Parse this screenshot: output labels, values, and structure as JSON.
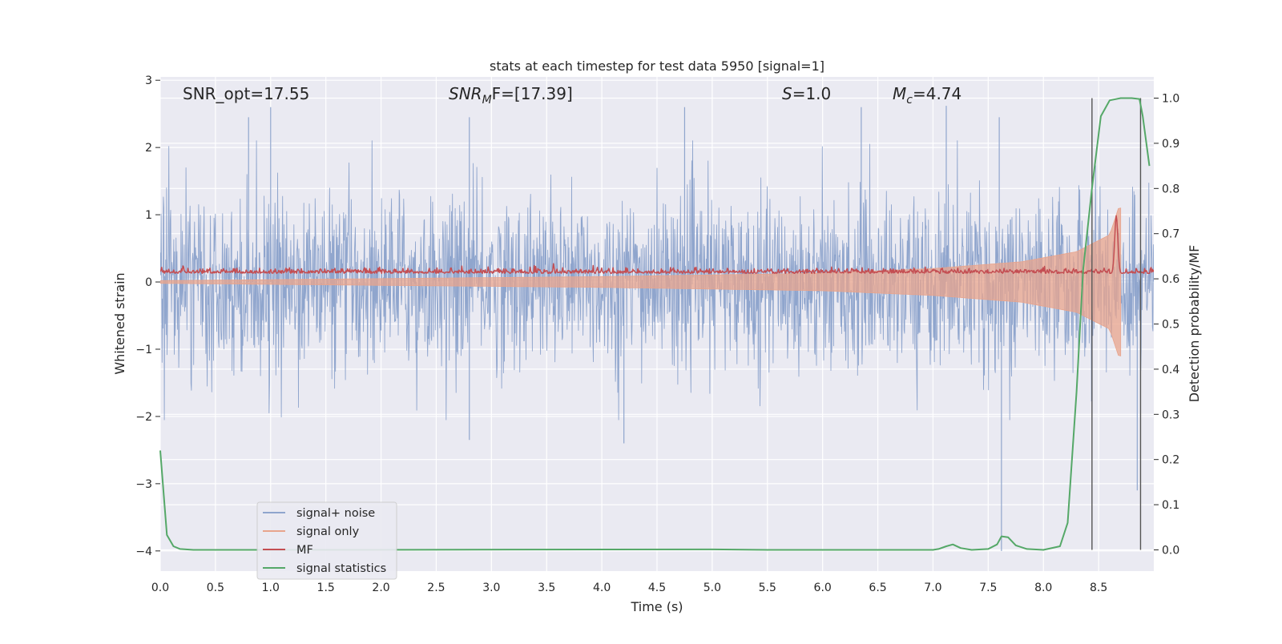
{
  "chart_data": {
    "type": "line",
    "title": "stats at each timestep for test data 5950 [signal=1]",
    "xlabel": "Time (s)",
    "ylabel": "Whitened strain",
    "y2label": "Detection probability/MF",
    "xlim": [
      0.0,
      9.0
    ],
    "ylim": [
      -4.3,
      3.05
    ],
    "y2lim": [
      -0.047,
      1.047
    ],
    "xticks": [
      "0.0",
      "0.5",
      "1.0",
      "1.5",
      "2.0",
      "2.5",
      "3.0",
      "3.5",
      "4.0",
      "4.5",
      "5.0",
      "5.5",
      "6.0",
      "6.5",
      "7.0",
      "7.5",
      "8.0",
      "8.5"
    ],
    "yticks": [
      "3",
      "2",
      "1",
      "0",
      "−1",
      "−2",
      "−3",
      "−4"
    ],
    "y2ticks": [
      "1.0",
      "0.9",
      "0.8",
      "0.7",
      "0.6",
      "0.5",
      "0.4",
      "0.3",
      "0.2",
      "0.1",
      "0.0"
    ],
    "grid": true,
    "legend_position": "lower-left",
    "annotations": {
      "snr_opt": "SNR_opt=17.55",
      "snr_mf_symbol": "SNR",
      "snr_mf_sub": "M",
      "snr_mf_rest": "F=[17.39]",
      "s_symbol": "S",
      "s_value": "=1.0",
      "mc_symbol": "M",
      "mc_sub": "c",
      "mc_value": "=4.74"
    },
    "vlines": [
      8.44,
      8.88
    ],
    "series": [
      {
        "name": "signal+ noise",
        "color": "#8fa5cd",
        "axis": "left",
        "description": "whitened strain of signal plus Gaussian noise, envelope roughly -1.5 to 1.8 with spikes to about 2.5 and -2.4; deep spikes near 7.62 s (-4.0) and 8.85 s (-3.1)",
        "envelope_low": -1.55,
        "envelope_high": 1.75,
        "spikes": [
          [
            0.8,
            2.45
          ],
          [
            1.0,
            2.6
          ],
          [
            2.8,
            2.45
          ],
          [
            4.75,
            2.6
          ],
          [
            6.35,
            2.6
          ],
          [
            7.12,
            2.62
          ],
          [
            7.6,
            2.45
          ],
          [
            2.8,
            -2.35
          ],
          [
            4.2,
            -2.4
          ],
          [
            7.62,
            -4.0
          ],
          [
            8.85,
            -3.1
          ]
        ]
      },
      {
        "name": "signal only",
        "color": "#e8a48c",
        "axis": "left",
        "description": "chirp signal whose amplitude grows toward merger",
        "amplitude_points": [
          [
            0.0,
            0.02
          ],
          [
            2.0,
            0.05
          ],
          [
            4.0,
            0.08
          ],
          [
            6.0,
            0.13
          ],
          [
            7.0,
            0.2
          ],
          [
            7.8,
            0.3
          ],
          [
            8.3,
            0.45
          ],
          [
            8.6,
            0.7
          ],
          [
            8.68,
            1.1
          ]
        ],
        "end_time": 8.7
      },
      {
        "name": "MF",
        "color": "#c44e52",
        "axis": "right",
        "description": "matched filter output, hovering near 0.61-0.62 with a sharp peak to 0.74 around 8.66 s",
        "baseline": 0.612,
        "peak": [
          8.66,
          0.74
        ]
      },
      {
        "name": "signal statistics",
        "color": "#55a868",
        "axis": "right",
        "x": [
          0.0,
          0.06,
          0.12,
          0.18,
          0.3,
          1.0,
          5.0,
          5.5,
          7.0,
          7.05,
          7.12,
          7.18,
          7.25,
          7.35,
          7.5,
          7.58,
          7.62,
          7.68,
          7.75,
          7.85,
          8.0,
          8.15,
          8.22,
          8.3,
          8.36,
          8.44,
          8.52,
          8.6,
          8.7,
          8.8,
          8.87,
          8.9,
          8.96
        ],
        "values": [
          0.22,
          0.033,
          0.008,
          0.002,
          0.0,
          0.0,
          0.001,
          0.0,
          0.0,
          0.002,
          0.008,
          0.012,
          0.004,
          0.0,
          0.002,
          0.012,
          0.03,
          0.028,
          0.01,
          0.002,
          0.0,
          0.008,
          0.06,
          0.35,
          0.62,
          0.8,
          0.96,
          0.995,
          1.0,
          1.0,
          0.998,
          0.96,
          0.85
        ]
      }
    ]
  }
}
